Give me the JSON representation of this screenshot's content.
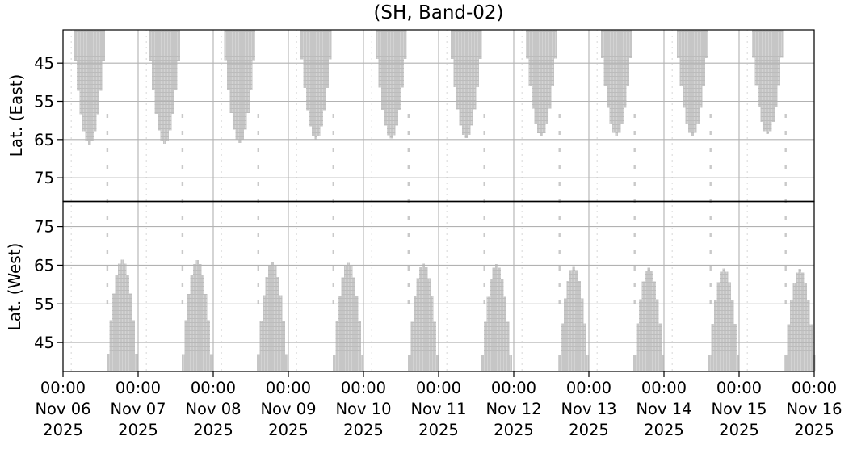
{
  "chart_data": {
    "type": "area",
    "title": "(SH, Band-02)",
    "x_axis": {
      "span_days": 10,
      "grid": true,
      "tick_labels": [
        {
          "time": "00:00",
          "date": "Nov 06",
          "year": "2025"
        },
        {
          "time": "00:00",
          "date": "Nov 07",
          "year": "2025"
        },
        {
          "time": "00:00",
          "date": "Nov 08",
          "year": "2025"
        },
        {
          "time": "00:00",
          "date": "Nov 09",
          "year": "2025"
        },
        {
          "time": "00:00",
          "date": "Nov 10",
          "year": "2025"
        },
        {
          "time": "00:00",
          "date": "Nov 11",
          "year": "2025"
        },
        {
          "time": "00:00",
          "date": "Nov 12",
          "year": "2025"
        },
        {
          "time": "00:00",
          "date": "Nov 13",
          "year": "2025"
        },
        {
          "time": "00:00",
          "date": "Nov 14",
          "year": "2025"
        },
        {
          "time": "00:00",
          "date": "Nov 15",
          "year": "2025"
        },
        {
          "time": "00:00",
          "date": "Nov 16",
          "year": "2025"
        }
      ]
    },
    "panels": [
      {
        "id": "east",
        "ylabel": "Lat. (East)",
        "y_ticks": [
          45,
          55,
          65,
          75
        ],
        "lat_range": [
          36.3,
          81.2
        ],
        "orientation": "lat-increases-downward",
        "pass_half_width_days": 0.22,
        "passes": [
          {
            "center_day": 0.35,
            "tip_lat": 66.3
          },
          {
            "center_day": 1.35,
            "tip_lat": 66.1
          },
          {
            "center_day": 2.35,
            "tip_lat": 65.9
          },
          {
            "center_day": 3.37,
            "tip_lat": 64.9
          },
          {
            "center_day": 4.37,
            "tip_lat": 64.7
          },
          {
            "center_day": 5.37,
            "tip_lat": 64.6
          },
          {
            "center_day": 6.37,
            "tip_lat": 64.2
          },
          {
            "center_day": 7.37,
            "tip_lat": 64.0
          },
          {
            "center_day": 8.38,
            "tip_lat": 64.0
          },
          {
            "center_day": 9.38,
            "tip_lat": 63.6
          }
        ]
      },
      {
        "id": "west",
        "ylabel": "Lat. (West)",
        "y_ticks": [
          75,
          65,
          55,
          45
        ],
        "lat_range": [
          37.5,
          81.5
        ],
        "orientation": "lat-increases-upward",
        "pass_half_width_days": 0.205,
        "passes": [
          {
            "center_day": 0.79,
            "tip_lat": 66.4
          },
          {
            "center_day": 1.79,
            "tip_lat": 66.3
          },
          {
            "center_day": 2.79,
            "tip_lat": 65.8
          },
          {
            "center_day": 3.8,
            "tip_lat": 65.6
          },
          {
            "center_day": 4.8,
            "tip_lat": 65.4
          },
          {
            "center_day": 5.77,
            "tip_lat": 65.3
          },
          {
            "center_day": 6.8,
            "tip_lat": 64.6
          },
          {
            "center_day": 7.8,
            "tip_lat": 64.4
          },
          {
            "center_day": 8.8,
            "tip_lat": 64.2
          },
          {
            "center_day": 9.81,
            "tip_lat": 64.0
          }
        ]
      }
    ],
    "polar_streak_days": [
      0.59,
      1.59,
      2.6,
      3.6,
      4.6,
      5.61,
      6.61,
      7.61,
      8.62,
      9.62
    ],
    "faint_track_days": [
      0.11,
      1.11,
      2.11,
      3.11,
      4.11,
      5.11,
      6.11,
      7.11,
      8.11,
      9.11
    ],
    "colors": {
      "pass_fill": "#c6c6c6",
      "pass_texture_light": "#d3d3d3",
      "pass_texture_dark": "#bcbcbc",
      "grid": "#b2b2b2",
      "streak": "#c9c9c9",
      "faint_track": "#dedede",
      "axis": "#000000",
      "background": "#ffffff"
    }
  }
}
